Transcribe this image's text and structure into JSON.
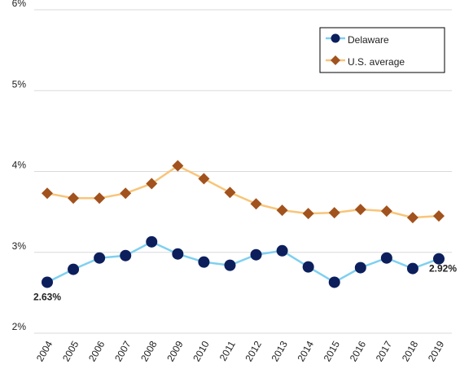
{
  "chart_data": {
    "type": "line",
    "categories": [
      "2004",
      "2005",
      "2006",
      "2007",
      "2008",
      "2009",
      "2010",
      "2011",
      "2012",
      "2013",
      "2014",
      "2015",
      "2016",
      "2017",
      "2018",
      "2019"
    ],
    "series": [
      {
        "name": "Delaware",
        "color": "#7fd0ef",
        "marker_color": "#0c1f5c",
        "marker": "circle",
        "values": [
          2.63,
          2.79,
          2.93,
          2.96,
          3.13,
          2.98,
          2.88,
          2.84,
          2.97,
          3.02,
          2.82,
          2.63,
          2.81,
          2.93,
          2.8,
          2.92
        ],
        "value_labels": [
          "2.63%",
          null,
          null,
          null,
          null,
          null,
          null,
          null,
          null,
          null,
          null,
          null,
          null,
          null,
          null,
          "2.92%"
        ]
      },
      {
        "name": "U.S. average",
        "color": "#f8c57a",
        "marker_color": "#a2521d",
        "marker": "diamond",
        "values": [
          3.73,
          3.67,
          3.67,
          3.73,
          3.85,
          4.07,
          3.91,
          3.74,
          3.6,
          3.52,
          3.48,
          3.49,
          3.53,
          3.51,
          3.43,
          3.45
        ]
      }
    ],
    "ylim": [
      2,
      6
    ],
    "yticks": [
      {
        "value": 2,
        "label": "2%"
      },
      {
        "value": 3,
        "label": "3%"
      },
      {
        "value": 4,
        "label": "4%"
      },
      {
        "value": 5,
        "label": "5%"
      },
      {
        "value": 6,
        "label": "6%"
      }
    ],
    "grid": true,
    "legend": "top-right"
  }
}
